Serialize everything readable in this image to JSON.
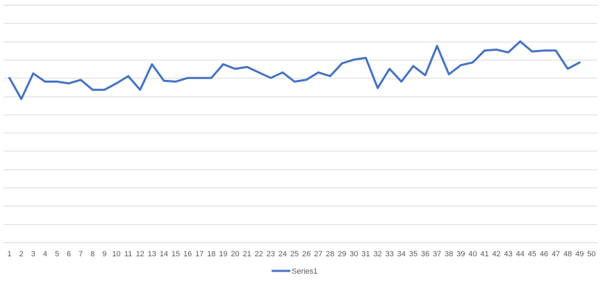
{
  "chart_data": {
    "type": "line",
    "title": "",
    "xlabel": "",
    "ylabel": "",
    "x_tick_labels": [
      "1",
      "2",
      "3",
      "4",
      "5",
      "6",
      "7",
      "8",
      "9",
      "10",
      "11",
      "12",
      "13",
      "14",
      "15",
      "16",
      "17",
      "18",
      "19",
      "20",
      "21",
      "22",
      "23",
      "24",
      "25",
      "26",
      "27",
      "28",
      "29",
      "30",
      "31",
      "32",
      "33",
      "34",
      "35",
      "36",
      "37",
      "38",
      "39",
      "40",
      "41",
      "42",
      "43",
      "44",
      "45",
      "46",
      "47",
      "48",
      "49",
      "50"
    ],
    "x": [
      1,
      2,
      3,
      4,
      5,
      6,
      7,
      8,
      9,
      10,
      11,
      12,
      13,
      14,
      15,
      16,
      17,
      18,
      19,
      20,
      21,
      22,
      23,
      24,
      25,
      26,
      27,
      28,
      29,
      30,
      31,
      32,
      33,
      34,
      35,
      36,
      37,
      38,
      39,
      40,
      41,
      42,
      43,
      44,
      45,
      46,
      47,
      48,
      49
    ],
    "ylim": [
      0,
      13
    ],
    "grid": true,
    "show_y_tick_labels": false,
    "legend_position": "bottom",
    "series": [
      {
        "name": "Series1",
        "color": "#4472c4",
        "values": [
          9.0,
          7.85,
          9.25,
          8.8,
          8.8,
          8.7,
          8.9,
          8.35,
          8.35,
          8.7,
          9.1,
          8.35,
          9.75,
          8.85,
          8.8,
          9.0,
          9.0,
          9.0,
          9.75,
          9.5,
          9.6,
          9.3,
          9.0,
          9.3,
          8.8,
          8.9,
          9.3,
          9.1,
          9.8,
          10.0,
          10.1,
          8.45,
          9.5,
          8.8,
          9.65,
          9.15,
          10.75,
          9.2,
          9.7,
          9.85,
          10.5,
          10.55,
          10.4,
          11.0,
          10.45,
          10.5,
          10.5,
          9.5,
          9.85
        ]
      }
    ]
  }
}
